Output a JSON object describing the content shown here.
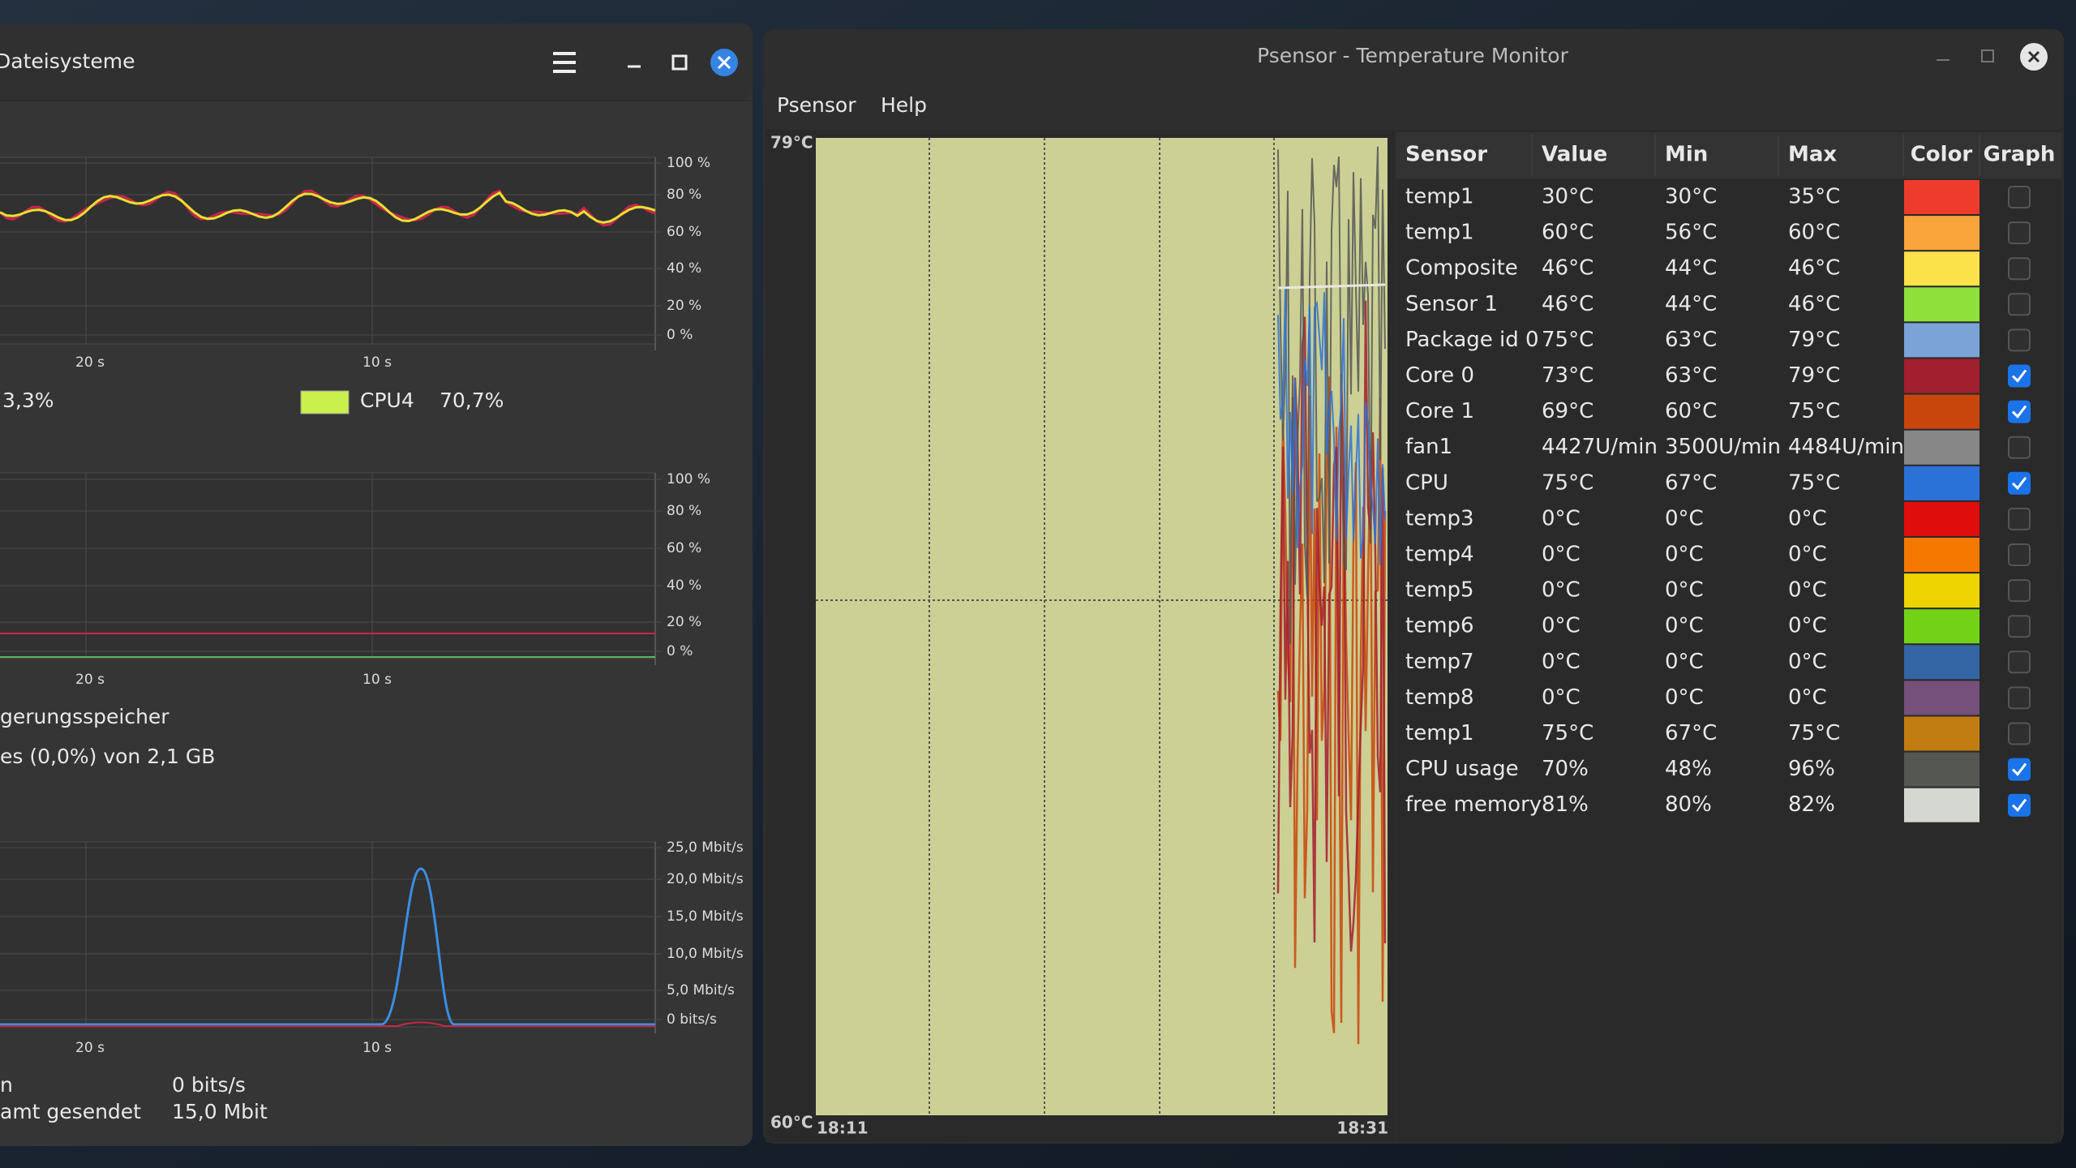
{
  "system_monitor": {
    "title": "Dateisysteme",
    "cpu_graph": {
      "yticks": [
        "100 %",
        "80 %",
        "60 %",
        "40 %",
        "20 %",
        "0 %"
      ],
      "xticks": [
        "20 s",
        "10 s"
      ],
      "legend": [
        {
          "value": "3,3%"
        },
        {
          "name": "CPU4",
          "value": "70,7%",
          "color": "#c9f04c"
        }
      ]
    },
    "memory_graph": {
      "yticks": [
        "100 %",
        "80 %",
        "60 %",
        "40 %",
        "20 %",
        "0 %"
      ],
      "xticks": [
        "20 s",
        "10 s"
      ],
      "swap_label": "gerungsspeicher",
      "swap_value": "es (0,0%) von 2,1 GB"
    },
    "network_graph": {
      "yticks": [
        "25,0 Mbit/s",
        "20,0 Mbit/s",
        "15,0 Mbit/s",
        "10,0 Mbit/s",
        "5,0 Mbit/s",
        "0 bits/s"
      ],
      "xticks": [
        "20 s",
        "10 s"
      ],
      "stats": [
        {
          "label": "n",
          "value": "0 bits/s"
        },
        {
          "label": "amt gesendet",
          "value": "15,0 Mbit"
        }
      ]
    }
  },
  "psensor": {
    "title": "Psensor - Temperature Monitor",
    "menu": [
      "Psensor",
      "Help"
    ],
    "graph": {
      "y_top": "79°C",
      "y_bottom": "60°C",
      "x_start": "18:11",
      "x_end": "18:31"
    },
    "table": {
      "columns": [
        "Sensor",
        "Value",
        "Min",
        "Max",
        "Color",
        "Graph"
      ],
      "rows": [
        {
          "sensor": "temp1",
          "value": "30°C",
          "min": "30°C",
          "max": "35°C",
          "color": "#ef3b2c",
          "graph": false
        },
        {
          "sensor": "temp1",
          "value": "60°C",
          "min": "56°C",
          "max": "60°C",
          "color": "#f9a33b",
          "graph": false
        },
        {
          "sensor": "Composite",
          "value": "46°C",
          "min": "44°C",
          "max": "46°C",
          "color": "#fbe14a",
          "graph": false
        },
        {
          "sensor": "Sensor 1",
          "value": "46°C",
          "min": "44°C",
          "max": "46°C",
          "color": "#8ee03b",
          "graph": false
        },
        {
          "sensor": "Package id 0",
          "value": "75°C",
          "min": "63°C",
          "max": "79°C",
          "color": "#7ba3d6",
          "graph": false
        },
        {
          "sensor": "Core 0",
          "value": "73°C",
          "min": "63°C",
          "max": "79°C",
          "color": "#a21f2f",
          "graph": true
        },
        {
          "sensor": "Core 1",
          "value": "69°C",
          "min": "60°C",
          "max": "75°C",
          "color": "#c8460c",
          "graph": true
        },
        {
          "sensor": "fan1",
          "value": "4427U/min",
          "min": "3500U/min",
          "max": "4484U/min",
          "color": "#878787",
          "graph": false
        },
        {
          "sensor": "CPU",
          "value": "75°C",
          "min": "67°C",
          "max": "75°C",
          "color": "#2a72d8",
          "graph": true
        },
        {
          "sensor": "temp3",
          "value": "0°C",
          "min": "0°C",
          "max": "0°C",
          "color": "#e00d0d",
          "graph": false
        },
        {
          "sensor": "temp4",
          "value": "0°C",
          "min": "0°C",
          "max": "0°C",
          "color": "#f57900",
          "graph": false
        },
        {
          "sensor": "temp5",
          "value": "0°C",
          "min": "0°C",
          "max": "0°C",
          "color": "#edd400",
          "graph": false
        },
        {
          "sensor": "temp6",
          "value": "0°C",
          "min": "0°C",
          "max": "0°C",
          "color": "#73d216",
          "graph": false
        },
        {
          "sensor": "temp7",
          "value": "0°C",
          "min": "0°C",
          "max": "0°C",
          "color": "#3465a4",
          "graph": false
        },
        {
          "sensor": "temp8",
          "value": "0°C",
          "min": "0°C",
          "max": "0°C",
          "color": "#75507b",
          "graph": false
        },
        {
          "sensor": "temp1",
          "value": "75°C",
          "min": "67°C",
          "max": "75°C",
          "color": "#c17d11",
          "graph": false
        },
        {
          "sensor": "CPU usage",
          "value": "70%",
          "min": "48%",
          "max": "96%",
          "color": "#555753",
          "graph": true
        },
        {
          "sensor": "free memory",
          "value": "81%",
          "min": "80%",
          "max": "82%",
          "color": "#d3d7cf",
          "graph": true
        }
      ]
    }
  }
}
